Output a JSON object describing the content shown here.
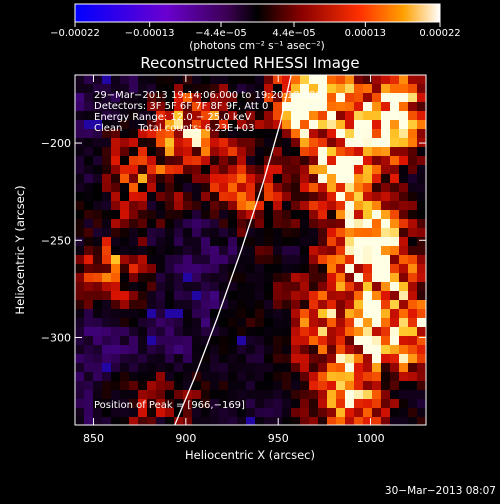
{
  "chart_data": {
    "type": "heatmap",
    "title": "Reconstructed RHESSI Image",
    "xlabel": "Heliocentric X (arcsec)",
    "ylabel": "Heliocentric Y (arcsec)",
    "xlim": [
      840,
      1030
    ],
    "ylim": [
      -345,
      -165
    ],
    "xticks": [
      850,
      900,
      950,
      1000
    ],
    "yticks": [
      -200,
      -250,
      -300
    ],
    "colorbar": {
      "unit_label": "(photons cm⁻² s⁻¹ asec⁻²)",
      "range": [
        -0.00022,
        0.00022
      ],
      "tick_values": [
        -0.00022,
        -0.00013,
        -4.4e-05,
        4.4e-05,
        0.00013,
        0.00022
      ],
      "tick_labels": [
        "−0.00022",
        "−0.00013",
        "−4.4e−05",
        "4.4e−05",
        "0.00013",
        "0.00022"
      ]
    },
    "annotations": [
      "29−Mar−2013 19:14:06.000 to 19:20:10.000",
      "Detectors: 3F 5F 6F 7F 8F 9F, Att 0",
      "Energy Range: 12.0 − 25.0 keV",
      "Clean     Total counts: 6.23E+03"
    ],
    "peak_label": "Position of Peak = [966,−169]",
    "peak": [
      966,
      -169
    ],
    "limb_points": [
      [
        894,
        -345
      ],
      [
        905,
        -320
      ],
      [
        917,
        -290
      ],
      [
        930,
        -255
      ],
      [
        942,
        -220
      ],
      [
        951,
        -190
      ],
      [
        957,
        -165
      ]
    ],
    "hot_regions": [
      {
        "x": 965,
        "y": -175,
        "level": 1.0
      },
      {
        "x": 1010,
        "y": -185,
        "level": 0.85
      },
      {
        "x": 985,
        "y": -215,
        "level": 0.7
      },
      {
        "x": 1000,
        "y": -255,
        "level": 0.85
      },
      {
        "x": 1015,
        "y": -295,
        "level": 0.75
      },
      {
        "x": 975,
        "y": -290,
        "level": 0.55
      },
      {
        "x": 905,
        "y": -190,
        "level": 0.65
      },
      {
        "x": 875,
        "y": -215,
        "level": 0.55
      },
      {
        "x": 860,
        "y": -265,
        "level": 0.6
      },
      {
        "x": 930,
        "y": -225,
        "level": 0.45
      },
      {
        "x": 990,
        "y": -330,
        "level": 0.6
      },
      {
        "x": 880,
        "y": -335,
        "level": 0.35
      }
    ]
  },
  "footer": {
    "timestamp": "30−Mar−2013 08:07"
  }
}
